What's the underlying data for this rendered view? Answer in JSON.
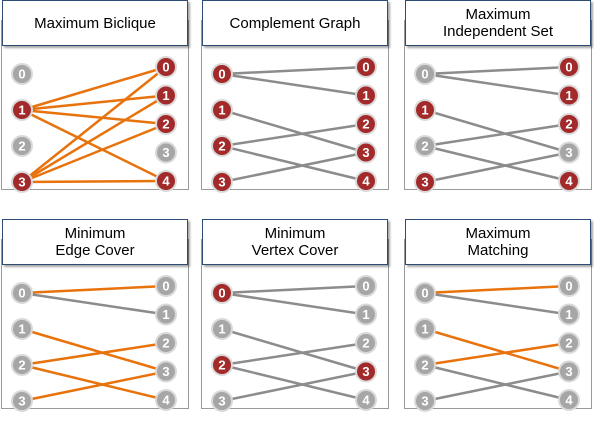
{
  "colors": {
    "selected_node": "#a32a2a",
    "normal_node": "#a6a6a6",
    "node_ring": "#d9d9d9",
    "highlight_edge": "#e8720c",
    "normal_edge": "#8c8c8c"
  },
  "panels": [
    {
      "title": "Maximum Biclique",
      "left_nodes": [
        {
          "label": "0",
          "selected": false
        },
        {
          "label": "1",
          "selected": true
        },
        {
          "label": "2",
          "selected": false
        },
        {
          "label": "3",
          "selected": true
        }
      ],
      "right_nodes": [
        {
          "label": "0",
          "selected": true
        },
        {
          "label": "1",
          "selected": true
        },
        {
          "label": "2",
          "selected": true
        },
        {
          "label": "3",
          "selected": false
        },
        {
          "label": "4",
          "selected": true
        }
      ],
      "edges": [
        {
          "from": 1,
          "to": 0,
          "highlight": true
        },
        {
          "from": 1,
          "to": 1,
          "highlight": true
        },
        {
          "from": 1,
          "to": 2,
          "highlight": true
        },
        {
          "from": 1,
          "to": 4,
          "highlight": true
        },
        {
          "from": 3,
          "to": 0,
          "highlight": true
        },
        {
          "from": 3,
          "to": 1,
          "highlight": true
        },
        {
          "from": 3,
          "to": 2,
          "highlight": true
        },
        {
          "from": 3,
          "to": 4,
          "highlight": true
        }
      ]
    },
    {
      "title": "Complement Graph",
      "left_nodes": [
        {
          "label": "0",
          "selected": true
        },
        {
          "label": "1",
          "selected": true
        },
        {
          "label": "2",
          "selected": true
        },
        {
          "label": "3",
          "selected": true
        }
      ],
      "right_nodes": [
        {
          "label": "0",
          "selected": true
        },
        {
          "label": "1",
          "selected": true
        },
        {
          "label": "2",
          "selected": true
        },
        {
          "label": "3",
          "selected": true
        },
        {
          "label": "4",
          "selected": true
        }
      ],
      "edges": [
        {
          "from": 0,
          "to": 0,
          "highlight": false
        },
        {
          "from": 0,
          "to": 1,
          "highlight": false
        },
        {
          "from": 1,
          "to": 3,
          "highlight": false
        },
        {
          "from": 2,
          "to": 2,
          "highlight": false
        },
        {
          "from": 2,
          "to": 4,
          "highlight": false
        },
        {
          "from": 3,
          "to": 3,
          "highlight": false
        }
      ]
    },
    {
      "title": "Maximum\nIndependent Set",
      "left_nodes": [
        {
          "label": "0",
          "selected": false
        },
        {
          "label": "1",
          "selected": true
        },
        {
          "label": "2",
          "selected": false
        },
        {
          "label": "3",
          "selected": true
        }
      ],
      "right_nodes": [
        {
          "label": "0",
          "selected": true
        },
        {
          "label": "1",
          "selected": true
        },
        {
          "label": "2",
          "selected": true
        },
        {
          "label": "3",
          "selected": false
        },
        {
          "label": "4",
          "selected": true
        }
      ],
      "edges": [
        {
          "from": 0,
          "to": 0,
          "highlight": false
        },
        {
          "from": 0,
          "to": 1,
          "highlight": false
        },
        {
          "from": 1,
          "to": 3,
          "highlight": false
        },
        {
          "from": 2,
          "to": 2,
          "highlight": false
        },
        {
          "from": 2,
          "to": 4,
          "highlight": false
        },
        {
          "from": 3,
          "to": 3,
          "highlight": false
        }
      ]
    },
    {
      "title": "Minimum\nEdge Cover",
      "left_nodes": [
        {
          "label": "0",
          "selected": false
        },
        {
          "label": "1",
          "selected": false
        },
        {
          "label": "2",
          "selected": false
        },
        {
          "label": "3",
          "selected": false
        }
      ],
      "right_nodes": [
        {
          "label": "0",
          "selected": false
        },
        {
          "label": "1",
          "selected": false
        },
        {
          "label": "2",
          "selected": false
        },
        {
          "label": "3",
          "selected": false
        },
        {
          "label": "4",
          "selected": false
        }
      ],
      "edges": [
        {
          "from": 0,
          "to": 0,
          "highlight": true
        },
        {
          "from": 0,
          "to": 1,
          "highlight": false
        },
        {
          "from": 1,
          "to": 3,
          "highlight": true
        },
        {
          "from": 2,
          "to": 2,
          "highlight": true
        },
        {
          "from": 2,
          "to": 4,
          "highlight": true
        },
        {
          "from": 3,
          "to": 3,
          "highlight": true
        }
      ]
    },
    {
      "title": "Minimum\nVertex Cover",
      "left_nodes": [
        {
          "label": "0",
          "selected": true
        },
        {
          "label": "1",
          "selected": false
        },
        {
          "label": "2",
          "selected": true
        },
        {
          "label": "3",
          "selected": false
        }
      ],
      "right_nodes": [
        {
          "label": "0",
          "selected": false
        },
        {
          "label": "1",
          "selected": false
        },
        {
          "label": "2",
          "selected": false
        },
        {
          "label": "3",
          "selected": true
        },
        {
          "label": "4",
          "selected": false
        }
      ],
      "edges": [
        {
          "from": 0,
          "to": 0,
          "highlight": false
        },
        {
          "from": 0,
          "to": 1,
          "highlight": false
        },
        {
          "from": 1,
          "to": 3,
          "highlight": false
        },
        {
          "from": 2,
          "to": 2,
          "highlight": false
        },
        {
          "from": 2,
          "to": 4,
          "highlight": false
        },
        {
          "from": 3,
          "to": 3,
          "highlight": false
        }
      ]
    },
    {
      "title": "Maximum\nMatching",
      "left_nodes": [
        {
          "label": "0",
          "selected": false
        },
        {
          "label": "1",
          "selected": false
        },
        {
          "label": "2",
          "selected": false
        },
        {
          "label": "3",
          "selected": false
        }
      ],
      "right_nodes": [
        {
          "label": "0",
          "selected": false
        },
        {
          "label": "1",
          "selected": false
        },
        {
          "label": "2",
          "selected": false
        },
        {
          "label": "3",
          "selected": false
        },
        {
          "label": "4",
          "selected": false
        }
      ],
      "edges": [
        {
          "from": 0,
          "to": 0,
          "highlight": true
        },
        {
          "from": 0,
          "to": 1,
          "highlight": false
        },
        {
          "from": 1,
          "to": 3,
          "highlight": true
        },
        {
          "from": 2,
          "to": 2,
          "highlight": true
        },
        {
          "from": 2,
          "to": 4,
          "highlight": false
        },
        {
          "from": 3,
          "to": 3,
          "highlight": false
        }
      ]
    }
  ]
}
